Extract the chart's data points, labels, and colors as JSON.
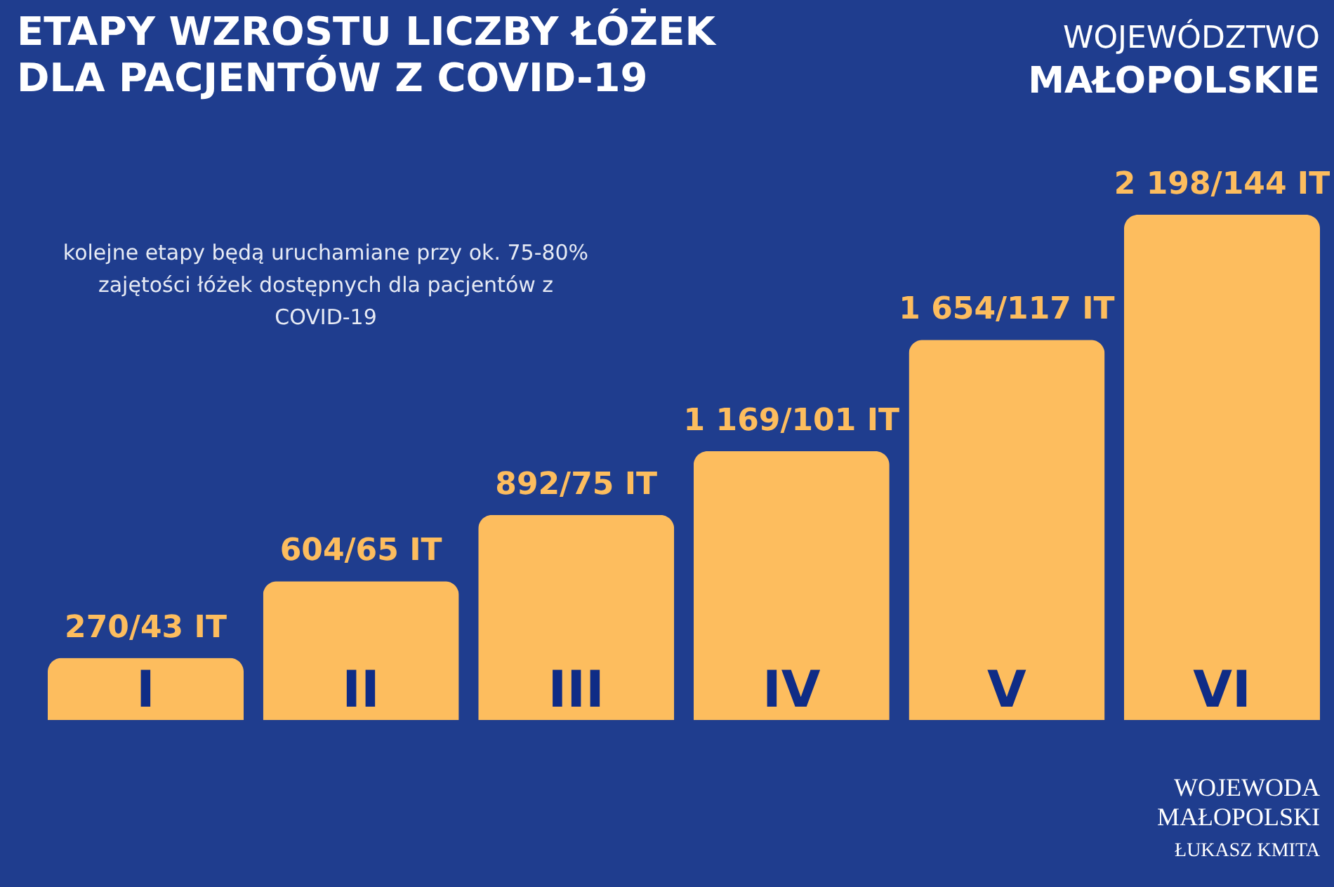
{
  "chart_data": {
    "type": "bar",
    "title": "ETAPY WZROSTU LICZBY ŁÓŻEK DLA PACJENTÓW Z COVID-19",
    "categories": [
      "I",
      "II",
      "III",
      "IV",
      "V",
      "VI"
    ],
    "values": [
      270,
      604,
      892,
      1169,
      1654,
      2198
    ],
    "value_labels": [
      "270/43 IT",
      "604/65 IT",
      "892/75 IT",
      "1 169/101 IT",
      "1 654/117 IT",
      "2 198/144 IT"
    ],
    "color": "#fdbd5e",
    "annotations": [
      "kolejne etapy będą uruchamiane przy ok. 75-80% zajętości łóżek dostępnych dla pacjentów z COVID-19",
      "WOJEWÓDZTWO",
      "MAŁOPOLSKIE",
      "WOJEWODA MAŁOPOLSKI",
      "ŁUKASZ KMITA"
    ]
  }
}
